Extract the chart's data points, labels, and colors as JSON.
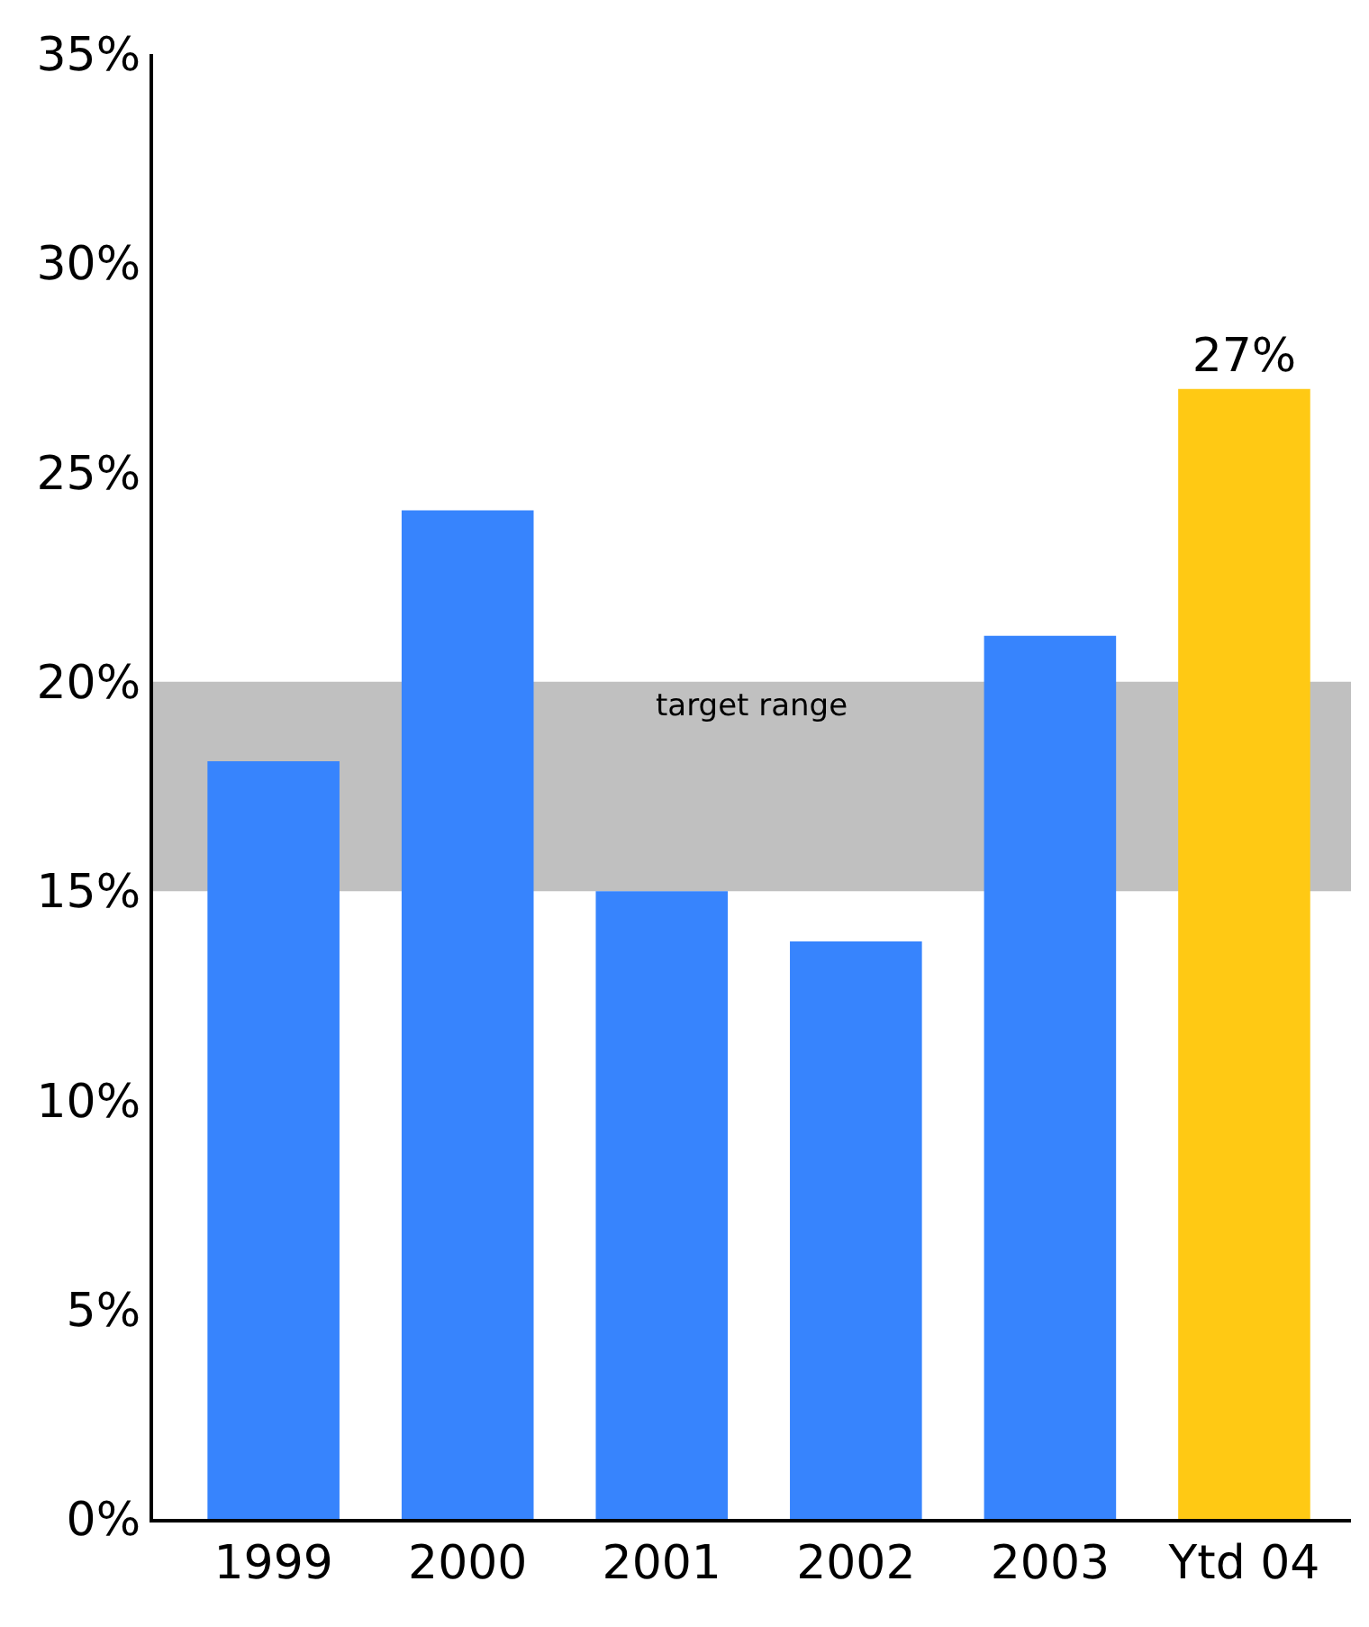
{
  "chart_data": {
    "type": "bar",
    "categories": [
      "1999",
      "2000",
      "2001",
      "2002",
      "2003",
      "Ytd 04"
    ],
    "values": [
      18.1,
      24.1,
      15.0,
      13.8,
      21.1,
      27
    ],
    "colors": [
      "#3784fd",
      "#3784fd",
      "#3784fd",
      "#3784fd",
      "#3784fd",
      "#ffc914"
    ],
    "value_labels": [
      null,
      null,
      null,
      null,
      null,
      "27%"
    ],
    "ylim": [
      0,
      35
    ],
    "yticks": [
      {
        "value": 0,
        "label": "0%"
      },
      {
        "value": 5,
        "label": "5%"
      },
      {
        "value": 10,
        "label": "10%"
      },
      {
        "value": 15,
        "label": "15%"
      },
      {
        "value": 20,
        "label": "20%"
      },
      {
        "value": 25,
        "label": "25%"
      },
      {
        "value": 30,
        "label": "30%"
      },
      {
        "value": 35,
        "label": "35%"
      }
    ],
    "bands": [
      {
        "axis": "y",
        "from": 15,
        "to": 20,
        "label": "target range",
        "color": "#c0c0c0"
      }
    ],
    "grid": false
  }
}
